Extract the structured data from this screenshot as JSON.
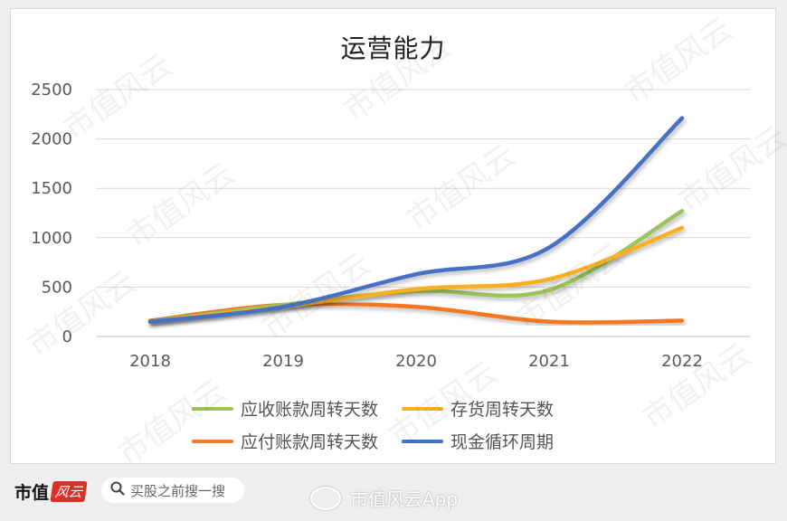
{
  "chart_data": {
    "type": "line",
    "title": "运营能力",
    "x": [
      "2018",
      "2019",
      "2020",
      "2021",
      "2022"
    ],
    "ylim": [
      0,
      2500
    ],
    "yticks": [
      0,
      500,
      1000,
      1500,
      2000,
      2500
    ],
    "grid": true,
    "legend_position": "bottom",
    "series": [
      {
        "name": "应收账款周转天数",
        "color": "#9dc45a",
        "values": [
          150,
          320,
          460,
          470,
          1270
        ]
      },
      {
        "name": "存货周转天数",
        "color": "#fbb024",
        "values": [
          150,
          300,
          480,
          580,
          1100
        ]
      },
      {
        "name": "应付账款周转天数",
        "color": "#f47721",
        "values": [
          160,
          320,
          300,
          150,
          160
        ]
      },
      {
        "name": "现金循环周期",
        "color": "#4472c4",
        "values": [
          150,
          300,
          630,
          900,
          2210
        ]
      }
    ]
  },
  "watermark_text": "市值风云",
  "footer": {
    "logo_text": "市值",
    "logo_badge": "风云",
    "search_placeholder": "买股之前搜一搜",
    "weibo_label": "市值风云App"
  }
}
